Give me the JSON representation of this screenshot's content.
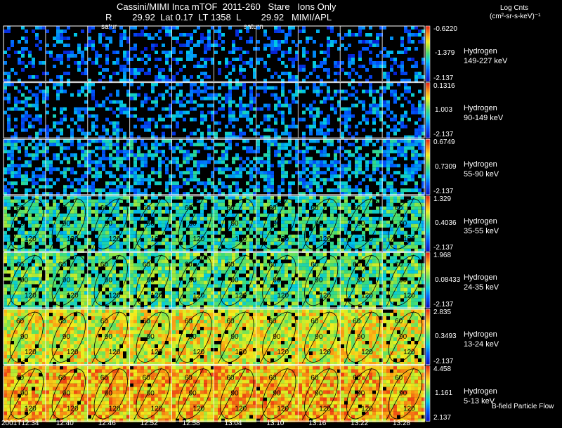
{
  "header": {
    "title_line1": "Cassini/MIMI Inca mTOF  2011-260   Stare   Ions Only",
    "title_line2": "R        29.92  Lat 0.17  LT 1358  L        29.92   MIMI/APL",
    "saturn_label_1": "satur",
    "saturn_label_2": "saturn",
    "units_title": "Log Cnts",
    "units_value": "(cm²-sr-s-keV)⁻¹"
  },
  "footer": {
    "bfield_label": "B-field Particle Flow"
  },
  "chart_data": {
    "type": "heatmap",
    "time_labels": [
      "2001T12:34",
      "12:40",
      "12:46",
      "12:52",
      "12:58",
      "13:04",
      "13:10",
      "13:16",
      "13:22",
      "13:28"
    ],
    "contour_values": [
      "60",
      "90",
      "120"
    ],
    "panels": [
      {
        "species": "Hydrogen",
        "energy": "149-227 keV",
        "cmax": "-0.6220",
        "cmid": "-1.379",
        "cmin": "-2.137",
        "fill": 0.35,
        "base": 0.2
      },
      {
        "species": "Hydrogen",
        "energy": "90-149 keV",
        "cmax": "0.1316",
        "cmid": "1.003",
        "cmin": "-2.137",
        "fill": 0.4,
        "base": 0.25
      },
      {
        "species": "Hydrogen",
        "energy": "55-90 keV",
        "cmax": "0.6749",
        "cmid": "0.7309",
        "cmin": "-2.137",
        "fill": 0.55,
        "base": 0.3
      },
      {
        "species": "Hydrogen",
        "energy": "35-55 keV",
        "cmax": "1.329",
        "cmid": "0.4036",
        "cmin": "-2.137",
        "fill": 0.75,
        "base": 0.45
      },
      {
        "species": "Hydrogen",
        "energy": "24-35 keV",
        "cmax": "1.968",
        "cmid": "0.08433",
        "cmin": "-2.137",
        "fill": 0.85,
        "base": 0.52
      },
      {
        "species": "Hydrogen",
        "energy": "13-24 keV",
        "cmax": "2.835",
        "cmid": "0.3493",
        "cmin": "-2.137",
        "fill": 0.95,
        "base": 0.7
      },
      {
        "species": "Hydrogen",
        "energy": "5-13 keV",
        "cmax": "4.458",
        "cmid": "1.161",
        "cmin": "2.137",
        "fill": 0.98,
        "base": 0.8
      }
    ]
  }
}
